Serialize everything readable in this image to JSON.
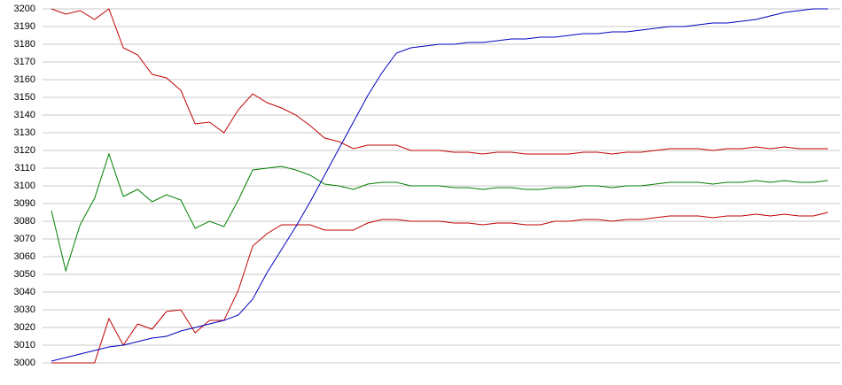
{
  "chart_data": {
    "type": "line",
    "ylim": [
      3000,
      3200
    ],
    "yticks": [
      3000,
      3010,
      3020,
      3030,
      3040,
      3050,
      3060,
      3070,
      3080,
      3090,
      3100,
      3110,
      3120,
      3130,
      3140,
      3150,
      3160,
      3170,
      3180,
      3190,
      3200
    ],
    "grid": true,
    "series": [
      {
        "color": "#c00000",
        "values": [
          3200,
          3197,
          3199,
          3194,
          3200,
          3178,
          3174,
          3163,
          3161,
          3154,
          3135,
          3136,
          3130,
          3143,
          3152,
          3147,
          3144,
          3140,
          3134,
          3127,
          3125,
          3121,
          3123,
          3123,
          3123,
          3120,
          3120,
          3120,
          3119,
          3119,
          3118,
          3119,
          3119,
          3118,
          3118,
          3118,
          3118,
          3119,
          3119,
          3118,
          3119,
          3119,
          3120,
          3121,
          3121,
          3121,
          3120,
          3121,
          3121,
          3122,
          3121,
          3122,
          3121,
          3121,
          3121
        ]
      },
      {
        "color": "#008000",
        "values": [
          3086,
          3052,
          3078,
          3093,
          3118,
          3094,
          3098,
          3091,
          3095,
          3092,
          3076,
          3080,
          3077,
          3092,
          3109,
          3110,
          3111,
          3109,
          3106,
          3101,
          3100,
          3098,
          3101,
          3102,
          3102,
          3100,
          3100,
          3100,
          3099,
          3099,
          3098,
          3099,
          3099,
          3098,
          3098,
          3099,
          3099,
          3100,
          3100,
          3099,
          3100,
          3100,
          3101,
          3102,
          3102,
          3102,
          3101,
          3102,
          3102,
          3103,
          3102,
          3103,
          3102,
          3102,
          3103
        ]
      },
      {
        "color": "#c00000",
        "values": [
          3000,
          3000,
          3000,
          3000,
          3025,
          3010,
          3022,
          3019,
          3029,
          3030,
          3017,
          3024,
          3024,
          3041,
          3066,
          3073,
          3078,
          3078,
          3078,
          3075,
          3075,
          3075,
          3079,
          3081,
          3081,
          3080,
          3080,
          3080,
          3079,
          3079,
          3078,
          3079,
          3079,
          3078,
          3078,
          3080,
          3080,
          3081,
          3081,
          3080,
          3081,
          3081,
          3082,
          3083,
          3083,
          3083,
          3082,
          3083,
          3083,
          3084,
          3083,
          3084,
          3083,
          3083,
          3085
        ]
      },
      {
        "color": "#0000c0",
        "values": [
          3001,
          3003,
          3005,
          3007,
          3009,
          3010,
          3012,
          3014,
          3015,
          3018,
          3020,
          3022,
          3024,
          3027,
          3036,
          3051,
          3064,
          3077,
          3091,
          3106,
          3121,
          3136,
          3151,
          3164,
          3175,
          3178,
          3179,
          3180,
          3180,
          3181,
          3181,
          3182,
          3183,
          3183,
          3184,
          3184,
          3185,
          3186,
          3186,
          3187,
          3187,
          3188,
          3189,
          3190,
          3190,
          3191,
          3192,
          3192,
          3193,
          3194,
          3196,
          3198,
          3199,
          3200,
          3200
        ]
      }
    ]
  }
}
